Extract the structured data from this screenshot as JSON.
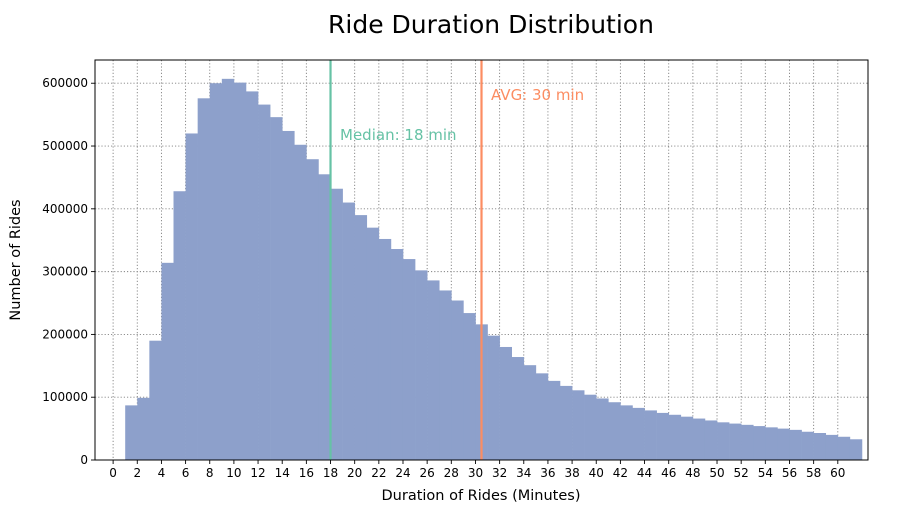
{
  "chart_data": {
    "type": "bar",
    "title": "Ride Duration Distribution",
    "xlabel": "Duration of Rides (Minutes)",
    "ylabel": "Number of Rides",
    "xlim": [
      -1.5,
      62.5
    ],
    "ylim": [
      0,
      637000
    ],
    "grid": true,
    "bar_color": "#8da0cb",
    "bin_width": 1,
    "x_ticks": [
      0,
      2,
      4,
      6,
      8,
      10,
      12,
      14,
      16,
      18,
      20,
      22,
      24,
      26,
      28,
      30,
      32,
      34,
      36,
      38,
      40,
      42,
      44,
      46,
      48,
      50,
      52,
      54,
      56,
      58,
      60
    ],
    "x_tick_labels": [
      "0",
      "2",
      "4",
      "6",
      "8",
      "10",
      "12",
      "14",
      "16",
      "18",
      "20",
      "22",
      "24",
      "26",
      "28",
      "30",
      "32",
      "34",
      "36",
      "38",
      "40",
      "42",
      "44",
      "46",
      "48",
      "50",
      "52",
      "54",
      "56",
      "58",
      "60"
    ],
    "y_ticks": [
      0,
      100000,
      200000,
      300000,
      400000,
      500000,
      600000
    ],
    "y_tick_labels": [
      "0",
      "100000",
      "200000",
      "300000",
      "400000",
      "500000",
      "600000"
    ],
    "bins": [
      1,
      2,
      3,
      4,
      5,
      6,
      7,
      8,
      9,
      10,
      11,
      12,
      13,
      14,
      15,
      16,
      17,
      18,
      19,
      20,
      21,
      22,
      23,
      24,
      25,
      26,
      27,
      28,
      29,
      30,
      31,
      32,
      33,
      34,
      35,
      36,
      37,
      38,
      39,
      40,
      41,
      42,
      43,
      44,
      45,
      46,
      47,
      48,
      49,
      50,
      51,
      52,
      53,
      54,
      55,
      56,
      57,
      58,
      59,
      60,
      61
    ],
    "values": [
      87000,
      99000,
      190000,
      314000,
      428000,
      520000,
      576000,
      600000,
      607000,
      601000,
      587000,
      566000,
      546000,
      524000,
      502000,
      479000,
      455000,
      432000,
      410000,
      390000,
      370000,
      352000,
      336000,
      320000,
      302000,
      286000,
      270000,
      254000,
      234000,
      216000,
      198000,
      180000,
      164000,
      151000,
      138000,
      126000,
      118000,
      111000,
      104000,
      98000,
      92000,
      87000,
      83000,
      79000,
      75000,
      72000,
      69000,
      66000,
      63000,
      60000,
      58000,
      56000,
      54000,
      52000,
      50000,
      48000,
      45000,
      43000,
      40000,
      37000,
      33000
    ],
    "reference_lines": [
      {
        "x": 18,
        "label": "Median: 18 min",
        "color": "#66c2a5"
      },
      {
        "x": 30.5,
        "label": "AVG: 30 min",
        "color": "#fc8d62"
      }
    ]
  }
}
